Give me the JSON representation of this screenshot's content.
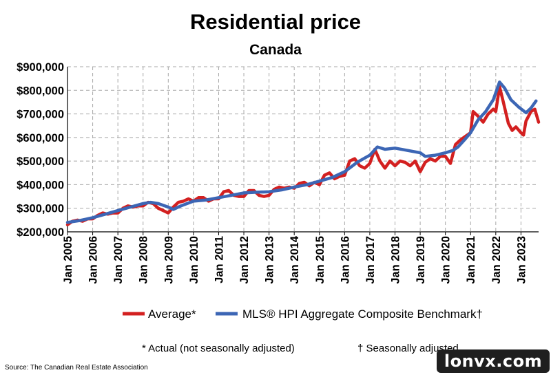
{
  "chart_data": {
    "type": "line",
    "title": "Residential price",
    "subtitle": "Canada",
    "xlabel": "",
    "ylabel": "",
    "x_start": 2005.0,
    "x_end": 2023.7,
    "ylim": [
      200000,
      900000
    ],
    "y_ticks": [
      200000,
      300000,
      400000,
      500000,
      600000,
      700000,
      800000,
      900000
    ],
    "y_tick_labels": [
      "$200,000",
      "$300,000",
      "$400,000",
      "$500,000",
      "$600,000",
      "$700,000",
      "$800,000",
      "$900,000"
    ],
    "x_ticks": [
      2005,
      2006,
      2007,
      2008,
      2009,
      2010,
      2011,
      2012,
      2013,
      2014,
      2015,
      2016,
      2017,
      2018,
      2019,
      2020,
      2021,
      2022,
      2023
    ],
    "x_tick_labels": [
      "Jan 2005",
      "Jan 2006",
      "Jan 2007",
      "Jan 2008",
      "Jan 2009",
      "Jan 2010",
      "Jan 2011",
      "Jan 2012",
      "Jan 2013",
      "Jan 2014",
      "Jan 2015",
      "Jan 2016",
      "Jan 2017",
      "Jan 2018",
      "Jan 2019",
      "Jan 2020",
      "Jan 2021",
      "Jan 2022",
      "Jan 2023"
    ],
    "grid": true,
    "legend_position": "bottom",
    "series": [
      {
        "name": "Average*",
        "color": "#d32020",
        "points": [
          [
            2005.0,
            230000
          ],
          [
            2005.2,
            245000
          ],
          [
            2005.4,
            250000
          ],
          [
            2005.6,
            245000
          ],
          [
            2005.8,
            255000
          ],
          [
            2006.0,
            255000
          ],
          [
            2006.2,
            270000
          ],
          [
            2006.4,
            280000
          ],
          [
            2006.6,
            275000
          ],
          [
            2006.8,
            280000
          ],
          [
            2007.0,
            280000
          ],
          [
            2007.2,
            300000
          ],
          [
            2007.4,
            310000
          ],
          [
            2007.6,
            305000
          ],
          [
            2007.8,
            310000
          ],
          [
            2008.0,
            310000
          ],
          [
            2008.2,
            325000
          ],
          [
            2008.4,
            320000
          ],
          [
            2008.6,
            300000
          ],
          [
            2008.8,
            290000
          ],
          [
            2009.0,
            280000
          ],
          [
            2009.2,
            305000
          ],
          [
            2009.4,
            325000
          ],
          [
            2009.6,
            330000
          ],
          [
            2009.8,
            340000
          ],
          [
            2010.0,
            330000
          ],
          [
            2010.2,
            345000
          ],
          [
            2010.4,
            345000
          ],
          [
            2010.6,
            330000
          ],
          [
            2010.8,
            340000
          ],
          [
            2011.0,
            340000
          ],
          [
            2011.2,
            370000
          ],
          [
            2011.4,
            375000
          ],
          [
            2011.6,
            355000
          ],
          [
            2011.8,
            350000
          ],
          [
            2012.0,
            350000
          ],
          [
            2012.2,
            375000
          ],
          [
            2012.4,
            375000
          ],
          [
            2012.6,
            355000
          ],
          [
            2012.8,
            350000
          ],
          [
            2013.0,
            355000
          ],
          [
            2013.2,
            380000
          ],
          [
            2013.4,
            390000
          ],
          [
            2013.6,
            385000
          ],
          [
            2013.8,
            390000
          ],
          [
            2014.0,
            385000
          ],
          [
            2014.2,
            405000
          ],
          [
            2014.4,
            410000
          ],
          [
            2014.6,
            395000
          ],
          [
            2014.8,
            410000
          ],
          [
            2015.0,
            400000
          ],
          [
            2015.2,
            440000
          ],
          [
            2015.4,
            450000
          ],
          [
            2015.6,
            425000
          ],
          [
            2015.8,
            435000
          ],
          [
            2016.0,
            440000
          ],
          [
            2016.2,
            500000
          ],
          [
            2016.4,
            510000
          ],
          [
            2016.6,
            480000
          ],
          [
            2016.8,
            470000
          ],
          [
            2017.0,
            490000
          ],
          [
            2017.2,
            550000
          ],
          [
            2017.4,
            500000
          ],
          [
            2017.6,
            470000
          ],
          [
            2017.8,
            500000
          ],
          [
            2018.0,
            480000
          ],
          [
            2018.2,
            500000
          ],
          [
            2018.4,
            495000
          ],
          [
            2018.6,
            480000
          ],
          [
            2018.8,
            500000
          ],
          [
            2019.0,
            455000
          ],
          [
            2019.2,
            495000
          ],
          [
            2019.4,
            510000
          ],
          [
            2019.6,
            500000
          ],
          [
            2019.8,
            520000
          ],
          [
            2020.0,
            520000
          ],
          [
            2020.2,
            490000
          ],
          [
            2020.4,
            570000
          ],
          [
            2020.6,
            590000
          ],
          [
            2020.8,
            605000
          ],
          [
            2021.0,
            620000
          ],
          [
            2021.1,
            710000
          ],
          [
            2021.3,
            690000
          ],
          [
            2021.5,
            665000
          ],
          [
            2021.7,
            700000
          ],
          [
            2021.9,
            720000
          ],
          [
            2022.0,
            710000
          ],
          [
            2022.15,
            815000
          ],
          [
            2022.3,
            750000
          ],
          [
            2022.5,
            660000
          ],
          [
            2022.65,
            630000
          ],
          [
            2022.8,
            645000
          ],
          [
            2023.0,
            620000
          ],
          [
            2023.1,
            610000
          ],
          [
            2023.2,
            670000
          ],
          [
            2023.4,
            710000
          ],
          [
            2023.55,
            720000
          ],
          [
            2023.7,
            665000
          ]
        ]
      },
      {
        "name": "MLS® HPI Aggregate Composite Benchmark†",
        "color": "#3c66b5",
        "points": [
          [
            2005.0,
            240000
          ],
          [
            2005.5,
            248000
          ],
          [
            2006.0,
            260000
          ],
          [
            2006.5,
            275000
          ],
          [
            2007.0,
            290000
          ],
          [
            2007.5,
            305000
          ],
          [
            2008.0,
            320000
          ],
          [
            2008.3,
            325000
          ],
          [
            2008.6,
            320000
          ],
          [
            2009.0,
            305000
          ],
          [
            2009.2,
            295000
          ],
          [
            2009.5,
            310000
          ],
          [
            2010.0,
            330000
          ],
          [
            2010.5,
            335000
          ],
          [
            2011.0,
            345000
          ],
          [
            2011.5,
            355000
          ],
          [
            2012.0,
            365000
          ],
          [
            2012.5,
            368000
          ],
          [
            2013.0,
            370000
          ],
          [
            2013.5,
            378000
          ],
          [
            2014.0,
            390000
          ],
          [
            2014.5,
            400000
          ],
          [
            2015.0,
            415000
          ],
          [
            2015.5,
            430000
          ],
          [
            2016.0,
            455000
          ],
          [
            2016.5,
            495000
          ],
          [
            2017.0,
            525000
          ],
          [
            2017.3,
            560000
          ],
          [
            2017.6,
            550000
          ],
          [
            2018.0,
            555000
          ],
          [
            2018.5,
            545000
          ],
          [
            2019.0,
            535000
          ],
          [
            2019.2,
            520000
          ],
          [
            2019.6,
            525000
          ],
          [
            2020.0,
            535000
          ],
          [
            2020.3,
            545000
          ],
          [
            2020.5,
            560000
          ],
          [
            2020.8,
            595000
          ],
          [
            2021.0,
            620000
          ],
          [
            2021.3,
            675000
          ],
          [
            2021.6,
            710000
          ],
          [
            2021.9,
            760000
          ],
          [
            2022.15,
            835000
          ],
          [
            2022.35,
            810000
          ],
          [
            2022.6,
            760000
          ],
          [
            2022.9,
            730000
          ],
          [
            2023.2,
            705000
          ],
          [
            2023.4,
            725000
          ],
          [
            2023.6,
            755000
          ]
        ]
      }
    ]
  },
  "footnotes": {
    "actual": "* Actual (not seasonally adjusted)",
    "seasonal": "† Seasonally adjusted"
  },
  "source": "Source: The Canadian Real Estate Association",
  "watermark": "lonvx.com"
}
